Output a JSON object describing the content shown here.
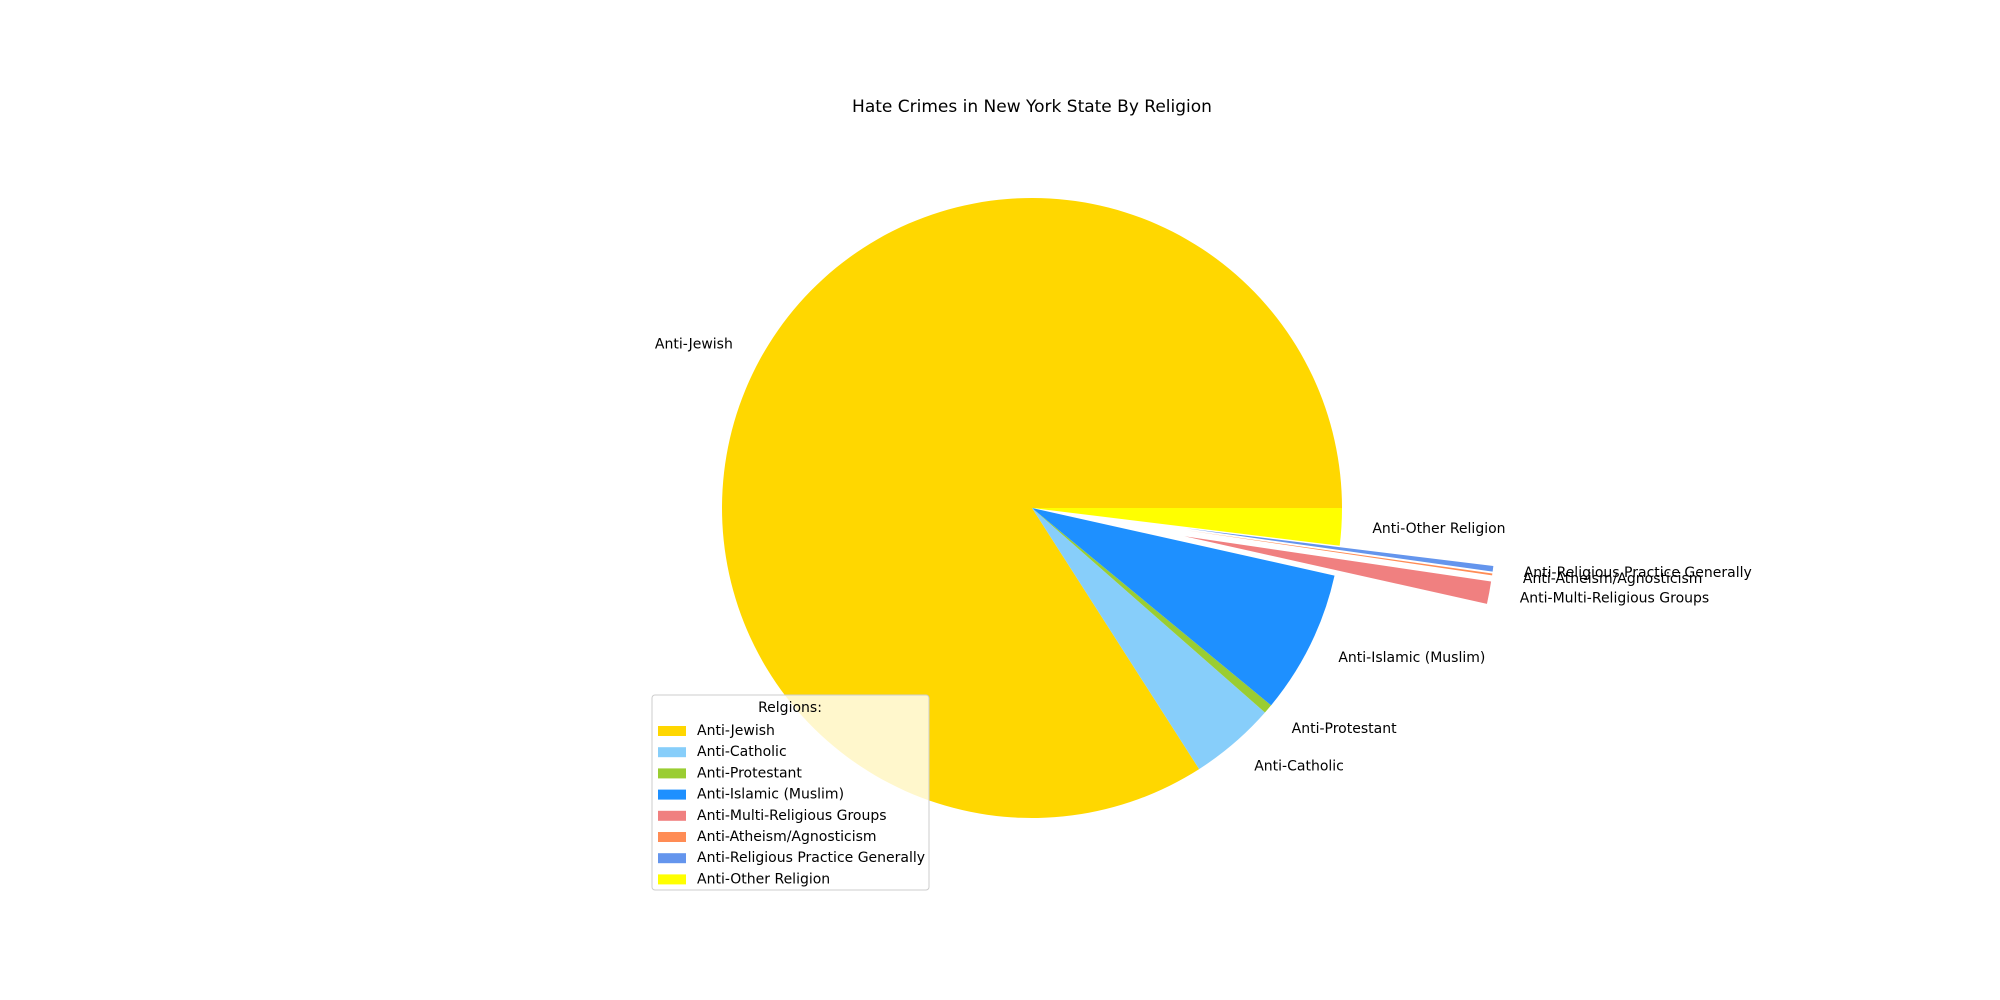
{
  "chart_data": {
    "type": "pie",
    "title": "Hate Crimes in New York State By Religion",
    "legend": {
      "title": "Relgions:",
      "placement": "lower-left"
    },
    "slices": [
      {
        "label": "Anti-Jewish",
        "value": 86.5,
        "color": "#FFD700",
        "exploded": false
      },
      {
        "label": "Anti-Catholic",
        "value": 4.6,
        "color": "#87CEFA",
        "exploded": false
      },
      {
        "label": "Anti-Protestant",
        "value": 0.5,
        "color": "#9ACD32",
        "exploded": false
      },
      {
        "label": "Anti-Islamic (Muslim)",
        "value": 7.7,
        "color": "#1E90FF",
        "exploded": false
      },
      {
        "label": "Anti-Multi-Religious Groups",
        "value": 1.2,
        "color": "#F08080",
        "exploded": true
      },
      {
        "label": "Anti-Atheism/Agnosticism",
        "value": 0.1,
        "color": "#FF8C55",
        "exploded": true
      },
      {
        "label": "Anti-Religious Practice Generally",
        "value": 0.3,
        "color": "#6495ED",
        "exploded": true
      },
      {
        "label": "Anti-Other Religion",
        "value": 2.0,
        "color": "#FFFF00",
        "exploded": false
      }
    ]
  }
}
